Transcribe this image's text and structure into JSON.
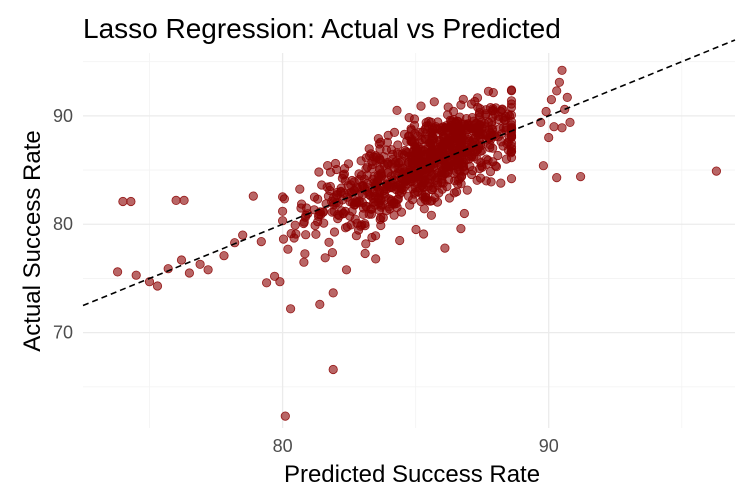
{
  "chart_data": {
    "type": "scatter",
    "title": "Lasso Regression: Actual vs Predicted",
    "xlabel": "Predicted Success Rate",
    "ylabel": "Actual Success Rate",
    "xlim": [
      72.5,
      97.0
    ],
    "ylim": [
      61.2,
      95.8
    ],
    "x_ticks": [
      80,
      90
    ],
    "y_ticks": [
      70,
      80,
      90
    ],
    "x_tick_labels": [
      "80",
      "90"
    ],
    "y_tick_labels": [
      "70",
      "80",
      "90"
    ],
    "grid": true,
    "legend": "none",
    "point_color": "#8b0000",
    "reference_line": {
      "style": "dashed",
      "color": "#000000",
      "x": [
        72.5,
        97.0
      ],
      "y": [
        72.5,
        97.0
      ]
    },
    "points": [
      {
        "x": 73.8,
        "y": 75.6
      },
      {
        "x": 74.0,
        "y": 82.1
      },
      {
        "x": 74.3,
        "y": 82.1
      },
      {
        "x": 74.5,
        "y": 75.3
      },
      {
        "x": 75.0,
        "y": 74.7
      },
      {
        "x": 75.3,
        "y": 74.3
      },
      {
        "x": 75.7,
        "y": 75.9
      },
      {
        "x": 76.0,
        "y": 82.2
      },
      {
        "x": 76.3,
        "y": 82.2
      },
      {
        "x": 76.2,
        "y": 76.7
      },
      {
        "x": 76.5,
        "y": 75.5
      },
      {
        "x": 76.9,
        "y": 76.3
      },
      {
        "x": 77.2,
        "y": 75.8
      },
      {
        "x": 77.8,
        "y": 77.1
      },
      {
        "x": 78.2,
        "y": 78.3
      },
      {
        "x": 78.5,
        "y": 79.0
      },
      {
        "x": 78.9,
        "y": 82.6
      },
      {
        "x": 79.2,
        "y": 78.4
      },
      {
        "x": 79.4,
        "y": 74.6
      },
      {
        "x": 79.7,
        "y": 75.2
      },
      {
        "x": 79.9,
        "y": 74.7
      },
      {
        "x": 80.1,
        "y": 62.3
      },
      {
        "x": 80.3,
        "y": 72.2
      },
      {
        "x": 81.4,
        "y": 72.6
      },
      {
        "x": 81.9,
        "y": 66.6
      },
      {
        "x": 80.2,
        "y": 77.7
      },
      {
        "x": 80.8,
        "y": 76.5
      },
      {
        "x": 81.6,
        "y": 76.9
      },
      {
        "x": 82.4,
        "y": 75.8
      },
      {
        "x": 83.1,
        "y": 77.3
      },
      {
        "x": 83.5,
        "y": 76.8
      },
      {
        "x": 84.4,
        "y": 78.5
      },
      {
        "x": 86.1,
        "y": 77.8
      },
      {
        "x": 86.7,
        "y": 79.6
      },
      {
        "x": 85.3,
        "y": 79.1
      },
      {
        "x": 88.2,
        "y": 83.8
      },
      {
        "x": 89.8,
        "y": 85.4
      },
      {
        "x": 90.3,
        "y": 84.3
      },
      {
        "x": 91.2,
        "y": 84.4
      },
      {
        "x": 96.3,
        "y": 84.9
      },
      {
        "x": 89.7,
        "y": 89.4
      },
      {
        "x": 89.9,
        "y": 90.4
      },
      {
        "x": 90.1,
        "y": 91.5
      },
      {
        "x": 90.3,
        "y": 92.3
      },
      {
        "x": 90.5,
        "y": 88.9
      },
      {
        "x": 90.4,
        "y": 93.1
      },
      {
        "x": 90.5,
        "y": 94.2
      },
      {
        "x": 90.7,
        "y": 91.7
      },
      {
        "x": 90.0,
        "y": 88.0
      },
      {
        "x": 90.6,
        "y": 90.6
      },
      {
        "x": 90.2,
        "y": 89.0
      },
      {
        "x": 90.8,
        "y": 89.4
      },
      {
        "x": 84.3,
        "y": 90.5
      },
      {
        "x": 85.2,
        "y": 90.9
      },
      {
        "x": 85.7,
        "y": 91.3
      },
      {
        "x": 86.2,
        "y": 90.1
      },
      {
        "x": 86.7,
        "y": 91.0
      },
      {
        "x": 87.4,
        "y": 90.3
      },
      {
        "x": 87.9,
        "y": 89.9
      },
      {
        "x": 88.3,
        "y": 88.9
      },
      {
        "x": 83.6,
        "y": 87.9
      },
      {
        "x": 81.2,
        "y": 82.5
      },
      {
        "x": 81.8,
        "y": 84.8
      },
      {
        "x": 80.5,
        "y": 79.1
      },
      {
        "x": 80.9,
        "y": 81.5
      },
      {
        "x": 82.8,
        "y": 80.1
      },
      {
        "x": 84.0,
        "y": 81.6
      },
      {
        "x": 85.6,
        "y": 83.2
      },
      {
        "x": 87.1,
        "y": 86.2
      },
      {
        "x": 88.6,
        "y": 87.5
      }
    ],
    "cloud": [
      {
        "n": 620,
        "cx": 85.0,
        "cy": 85.0,
        "sx": 2.0,
        "slope": 0.95,
        "sy": 2.0,
        "xmin": 80.0,
        "xmax": 88.6
      },
      {
        "n": 230,
        "cx": 86.2,
        "cy": 87.1,
        "sx": 1.2,
        "slope": 0.8,
        "sy": 1.5,
        "xmin": 83.0,
        "xmax": 88.6
      }
    ]
  }
}
